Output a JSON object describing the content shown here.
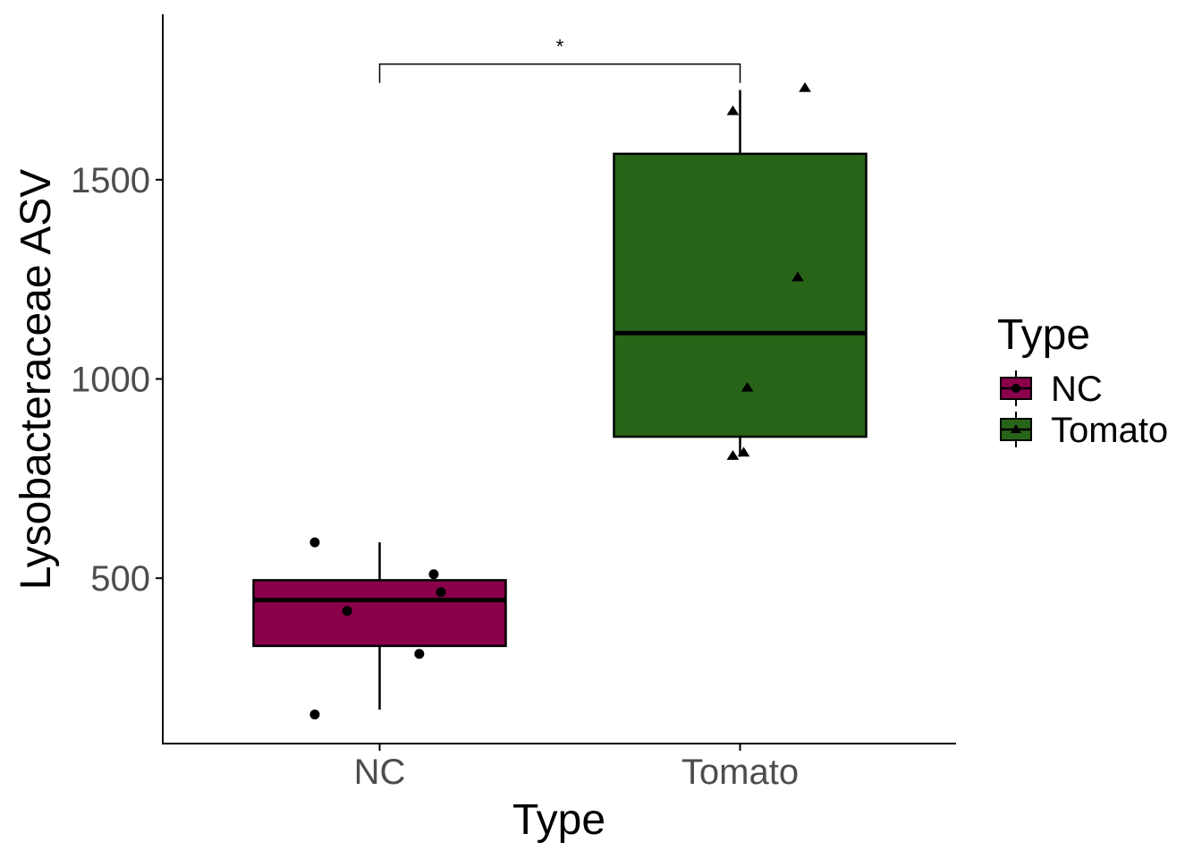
{
  "chart_data": {
    "type": "box",
    "xlabel": "Type",
    "ylabel": "Lysobacteraceae ASV",
    "categories": [
      "NC",
      "Tomato"
    ],
    "yticks": [
      500,
      1000,
      1500
    ],
    "ylim": [
      85,
      1915
    ],
    "grid": false,
    "legend": {
      "title": "Type",
      "placement": "right",
      "entries": [
        {
          "label": "NC",
          "color": "#8B004B",
          "shape": "circle"
        },
        {
          "label": "Tomato",
          "color": "#286418",
          "shape": "triangle"
        }
      ]
    },
    "boxes": [
      {
        "category": "NC",
        "whisker_low": 170,
        "q1": 330,
        "median": 445,
        "q3": 495,
        "whisker_high": 590,
        "color": "#8B004B"
      },
      {
        "category": "Tomato",
        "whisker_low": 805,
        "q1": 855,
        "median": 1115,
        "q3": 1565,
        "whisker_high": 1725,
        "color": "#286418"
      }
    ],
    "points": [
      {
        "category": "NC",
        "jitter": -0.18,
        "y": 590
      },
      {
        "category": "NC",
        "jitter": 0.15,
        "y": 510
      },
      {
        "category": "NC",
        "jitter": 0.17,
        "y": 465
      },
      {
        "category": "NC",
        "jitter": -0.09,
        "y": 418
      },
      {
        "category": "NC",
        "jitter": 0.11,
        "y": 310
      },
      {
        "category": "NC",
        "jitter": -0.18,
        "y": 158
      },
      {
        "category": "Tomato",
        "jitter": 0.18,
        "y": 1730
      },
      {
        "category": "Tomato",
        "jitter": -0.02,
        "y": 1672
      },
      {
        "category": "Tomato",
        "jitter": 0.16,
        "y": 1255
      },
      {
        "category": "Tomato",
        "jitter": 0.02,
        "y": 978
      },
      {
        "category": "Tomato",
        "jitter": 0.01,
        "y": 815
      },
      {
        "category": "Tomato",
        "jitter": -0.02,
        "y": 807
      }
    ],
    "annotations": [
      {
        "type": "significance",
        "from": "NC",
        "to": "Tomato",
        "label": "*",
        "y": 1790,
        "tip_y": 1743
      }
    ]
  }
}
